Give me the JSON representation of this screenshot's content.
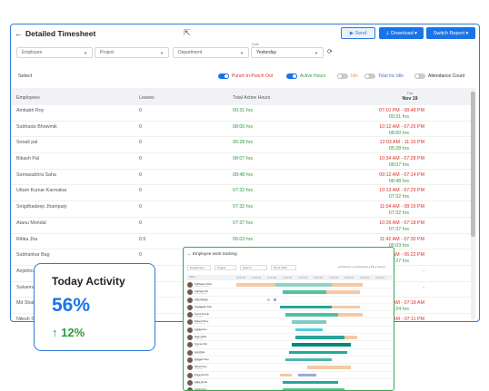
{
  "header": {
    "back": "←",
    "title": "Detailed Timesheet"
  },
  "buttons": {
    "send": "▶  Send",
    "download": "⇣  Download ▾",
    "switch": "Switch Report ▾"
  },
  "filters": {
    "employee": "Employee",
    "project": "Project",
    "department": "Department",
    "date_label": "Date Period",
    "date": "Yesterday"
  },
  "toggles": {
    "select": "Select",
    "punch": "Punch In-Punch Out",
    "active": "Active Hours",
    "idle": "Idle",
    "total_inc_idle": "Total Inc Idle",
    "attendance": "Attendance Count",
    "colors": {
      "punch": "#d93025",
      "active": "#2e9b3a",
      "idle": "#e6a23c",
      "total": "#5c6bc0"
    }
  },
  "table": {
    "headers": {
      "employees": "Employees",
      "leaves": "Leaves",
      "hours": "Total Active Hours",
      "day": "Tue",
      "date": "Nov 19"
    },
    "rows": [
      {
        "name": "Amitabh Roy",
        "leaves": "0",
        "hours": "00:31 hrs",
        "punch": "07:10 PM - 08:48 PM",
        "dur": "00:31 hrs"
      },
      {
        "name": "Subhasis Bhowmik",
        "leaves": "0",
        "hours": "08:00 hrs",
        "punch": "10:12 AM - 07:26 PM",
        "dur": "08:00 hrs"
      },
      {
        "name": "Sonali pal",
        "leaves": "0",
        "hours": "05:28 hrs",
        "punch": "12:03 AM - 11:16 PM",
        "dur": "05:28 hrs"
      },
      {
        "name": "Bikash Pal",
        "leaves": "0",
        "hours": "08:07 hrs",
        "punch": "10:34 AM - 07:28 PM",
        "dur": "08:07 hrs"
      },
      {
        "name": "Somasubhra Saha",
        "leaves": "0",
        "hours": "08:48 hrs",
        "punch": "09:12 AM - 07:14 PM",
        "dur": "08:48 hrs"
      },
      {
        "name": "Uttam Kumar Karmakar",
        "leaves": "0",
        "hours": "07:32 hrs",
        "punch": "10:13 AM - 07:29 PM",
        "dur": "07:32 hrs"
      },
      {
        "name": "Snigdhadeep Jhampaty",
        "leaves": "0",
        "hours": "07:32 hrs",
        "punch": "11:04 AM - 08:16 PM",
        "dur": "07:32 hrs"
      },
      {
        "name": "Atanu Mondal",
        "leaves": "0",
        "hours": "07:37 hrs",
        "punch": "10:26 AM - 07:18 PM",
        "dur": "07:37 hrs"
      },
      {
        "name": "Ritika Jha",
        "leaves": "0.5",
        "hours": "06:03 hrs",
        "punch": "11:42 AM - 07:30 PM",
        "dur": "06:03 hrs"
      },
      {
        "name": "Subhankar Bag",
        "leaves": "0",
        "hours": "",
        "punch": "09:41 AM - 06:22 PM",
        "dur": "07:27 hrs"
      },
      {
        "name": "Anjishnu",
        "leaves": "",
        "hours": "",
        "punch": "-",
        "dur": ""
      },
      {
        "name": "Sukanna",
        "leaves": "",
        "hours": "",
        "punch": "-",
        "dur": ""
      },
      {
        "name": "Md Shah",
        "leaves": "",
        "hours": "",
        "punch": "10:07 AM - 07:18 AM",
        "dur": "00:24 hrs"
      },
      {
        "name": "Nilesh S",
        "leaves": "",
        "hours": "",
        "punch": "10:23 AM - 07:11 PM",
        "dur": "09:06 hrs"
      },
      {
        "name": "Manjari",
        "leaves": "",
        "hours": "",
        "punch": "10:02 AM - 09:15 PM",
        "dur": ""
      }
    ]
  },
  "activity": {
    "title": "Today Activity",
    "value": "56%",
    "change": "↑ 12%"
  },
  "overlay": {
    "title": "← Employee work tracking",
    "filters": {
      "department": "Department",
      "project": "Project",
      "search": "Search",
      "date": "29.11.2024"
    },
    "legend": "● Productive ● Unproductive ● Idle ● Neutral",
    "head": {
      "users": "Users"
    },
    "times": [
      "09:00 AM",
      "10:00 AM",
      "11:00 AM",
      "12:00 PM",
      "01:00 PM",
      "02:00 PM",
      "03:00 PM",
      "04:00 PM",
      "05:00 PM",
      "06:00 PM"
    ],
    "users": [
      {
        "name": "Subhasis Saha",
        "sub": "Software Engineer",
        "segs": [
          [
            0.0,
            0.25,
            "#f3c9a7"
          ],
          [
            0.25,
            0.62,
            "#8fd3c3"
          ],
          [
            0.62,
            0.82,
            "#f3c9a7"
          ]
        ]
      },
      {
        "name": "Subhajit Pal",
        "sub": "Web Developer",
        "segs": [
          [
            0.3,
            0.58,
            "#4fc3a1"
          ],
          [
            0.58,
            0.8,
            "#f3c9a7"
          ]
        ]
      },
      {
        "name": "Arijit Ghosh",
        "sub": "Product Designer",
        "segs": [
          [
            0.2,
            0.22,
            "#f3c9a7"
          ],
          [
            0.24,
            0.26,
            "#9ad"
          ]
        ]
      },
      {
        "name": "Snehasish Das",
        "sub": "UI Designer",
        "segs": [
          [
            0.28,
            0.62,
            "#26a69a"
          ],
          [
            0.62,
            0.8,
            "#f3c9a7"
          ]
        ]
      },
      {
        "name": "Sumit Kumar",
        "sub": "Developer",
        "segs": [
          [
            0.32,
            0.66,
            "#4fc3a1"
          ],
          [
            0.66,
            0.82,
            "#f3c9a7"
          ]
        ]
      },
      {
        "name": "Rakesh Roy",
        "sub": "QA Engineer",
        "segs": [
          [
            0.36,
            0.58,
            "#80cbc4"
          ]
        ]
      },
      {
        "name": "Ankita Sen",
        "sub": "Designer",
        "segs": [
          [
            0.38,
            0.56,
            "#4dd0e1"
          ]
        ]
      },
      {
        "name": "Raju Saha",
        "sub": "Developer",
        "segs": [
          [
            0.38,
            0.7,
            "#26a69a"
          ],
          [
            0.7,
            0.78,
            "#f3c9a7"
          ]
        ]
      },
      {
        "name": "Sourav Pal",
        "sub": "Tester",
        "segs": [
          [
            0.36,
            0.74,
            "#00897b"
          ]
        ]
      },
      {
        "name": "Amit Das",
        "sub": "Developer",
        "segs": [
          [
            0.34,
            0.72,
            "#26a69a"
          ]
        ]
      },
      {
        "name": "Debasis Dey",
        "sub": "Manager",
        "segs": [
          [
            0.32,
            0.62,
            "#4db6ac"
          ]
        ]
      },
      {
        "name": "Nilesh Roy",
        "sub": "Developer",
        "segs": [
          [
            0.46,
            0.74,
            "#f3c9a7"
          ]
        ]
      },
      {
        "name": "Priya Ghosh",
        "sub": "Designer",
        "segs": [
          [
            0.28,
            0.36,
            "#f3c9a7"
          ],
          [
            0.4,
            0.52,
            "#9ad"
          ]
        ]
      },
      {
        "name": "Kabir Dutta",
        "sub": "Developer",
        "segs": [
          [
            0.3,
            0.66,
            "#26a69a"
          ]
        ]
      },
      {
        "name": "Sohini Roy",
        "sub": "QA",
        "segs": [
          [
            0.3,
            0.7,
            "#4fc3a1"
          ]
        ]
      }
    ]
  }
}
